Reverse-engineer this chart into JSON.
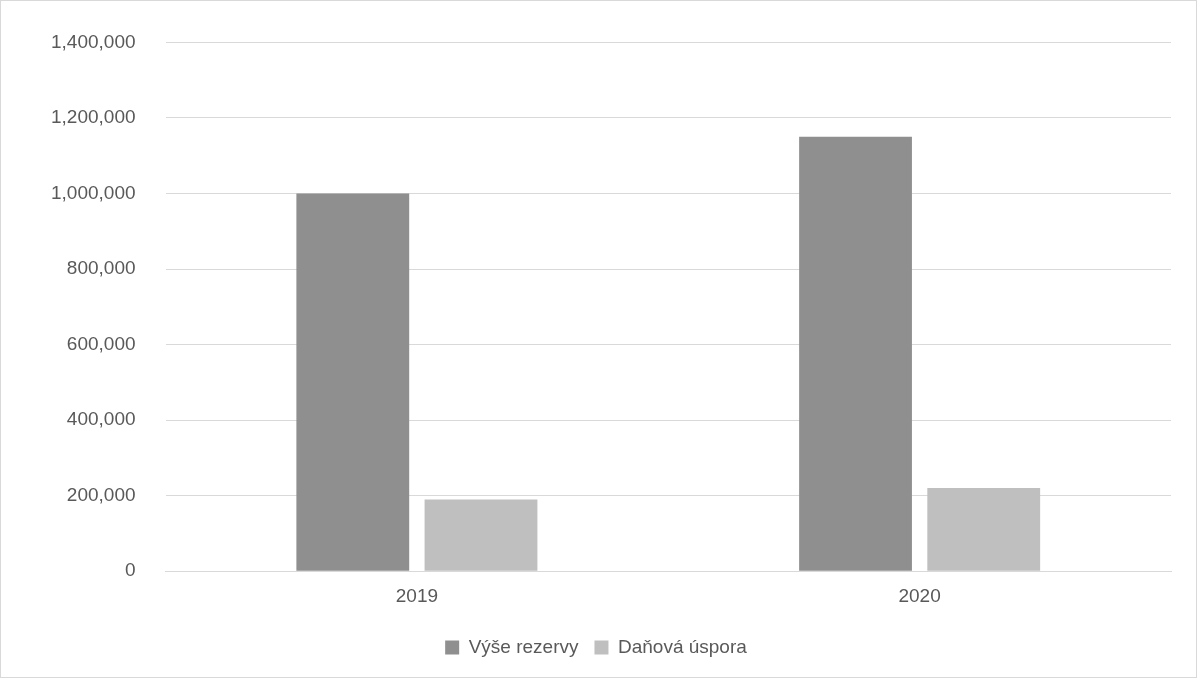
{
  "chart_data": {
    "type": "bar",
    "categories": [
      "2019",
      "2020"
    ],
    "series": [
      {
        "name": "Výše rezervy",
        "color": "#8f8f8f",
        "values": [
          1000000,
          1150000
        ]
      },
      {
        "name": "Daňová úspora",
        "color": "#bfbfbf",
        "values": [
          190000,
          220000
        ]
      }
    ],
    "ylim": [
      0,
      1400000
    ],
    "yticks": [
      0,
      {
        "value": 200000,
        "label": "200,000"
      },
      {
        "value": 400000,
        "label": "400,000"
      },
      {
        "value": 600000,
        "label": "600,000"
      },
      {
        "value": 800000,
        "label": "800,000"
      },
      {
        "value": 1000000,
        "label": "1,000,000"
      },
      {
        "value": 1200000,
        "label": "1,200,000"
      },
      {
        "value": 1400000,
        "label": "1,400,000"
      }
    ],
    "grid": "y",
    "legend": "bottom"
  }
}
